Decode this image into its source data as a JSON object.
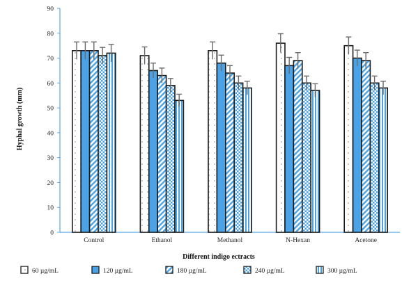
{
  "chart_data": {
    "type": "bar",
    "title": "",
    "xlabel": "Different indigo ectracts",
    "ylabel": "Hyphal growth (mm)",
    "ylim": [
      0,
      90
    ],
    "yticks": [
      0,
      10,
      20,
      30,
      40,
      50,
      60,
      70,
      80,
      90
    ],
    "grid": false,
    "legend_position": "bottom",
    "categories": [
      "Control",
      "Ethanol",
      "Methanol",
      "N-Hexan",
      "Acetone"
    ],
    "series": [
      {
        "name": "60 µg/mL",
        "values": [
          73,
          71,
          73,
          76,
          75
        ],
        "errors": [
          3.5,
          3.5,
          3.5,
          3.8,
          3.5
        ],
        "pattern": "dots",
        "color": "#ffffff"
      },
      {
        "name": "120 µg/mL",
        "values": [
          73,
          65,
          68,
          67,
          70
        ],
        "errors": [
          3.5,
          3.0,
          3.2,
          3.3,
          3.2
        ],
        "pattern": "solid",
        "color": "#4aa3e6"
      },
      {
        "name": "180 µg/mL",
        "values": [
          73,
          63,
          64,
          69,
          69
        ],
        "errors": [
          3.5,
          3.0,
          3.0,
          3.2,
          3.2
        ],
        "pattern": "diagonal",
        "color": "#4aa3e6"
      },
      {
        "name": "240 µg/mL",
        "values": [
          71,
          59,
          60,
          60,
          60
        ],
        "errors": [
          3.3,
          2.8,
          2.8,
          2.8,
          2.8
        ],
        "pattern": "checker",
        "color": "#4aa3e6"
      },
      {
        "name": "300 µg/mL",
        "values": [
          72,
          53,
          58,
          57,
          58
        ],
        "errors": [
          3.5,
          2.5,
          2.7,
          2.7,
          2.7
        ],
        "pattern": "vertical",
        "color": "#4aa3e6"
      }
    ]
  }
}
